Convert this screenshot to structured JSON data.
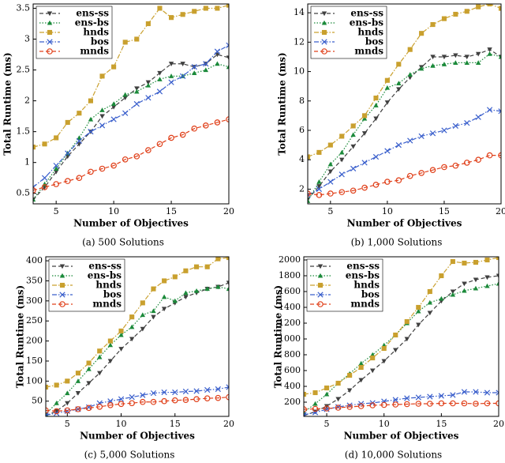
{
  "chart_data": [
    {
      "type": "line",
      "caption": "(a) 500 Solutions",
      "xlabel": "Number of Objectives",
      "ylabel": "Total Runtime (ms)",
      "x": [
        3,
        4,
        5,
        6,
        7,
        8,
        9,
        10,
        11,
        12,
        13,
        14,
        15,
        16,
        17,
        18,
        19,
        20
      ],
      "xlim": [
        3,
        20
      ],
      "xticks": [
        5,
        10,
        15,
        20
      ],
      "ylim": [
        0.33,
        3.57
      ],
      "yticks": [
        0.5,
        1,
        1.5,
        2,
        2.5,
        3,
        3.5
      ],
      "grid": false,
      "legend": "upper left",
      "series": [
        {
          "name": "ens-ss",
          "color": "#404040",
          "marker": "triangle-down",
          "dash": "dashed",
          "values": [
            0.4,
            0.6,
            0.85,
            1.1,
            1.3,
            1.5,
            1.75,
            1.9,
            2.05,
            2.2,
            2.3,
            2.45,
            2.6,
            2.6,
            2.55,
            2.6,
            2.75,
            2.7
          ]
        },
        {
          "name": "ens-bs",
          "color": "#1b8a3a",
          "marker": "triangle-up",
          "dash": "dotted",
          "values": [
            0.4,
            0.65,
            0.9,
            1.15,
            1.4,
            1.7,
            1.85,
            1.95,
            2.1,
            2.15,
            2.25,
            2.35,
            2.4,
            2.4,
            2.45,
            2.5,
            2.6,
            2.55
          ]
        },
        {
          "name": "hnds",
          "color": "#c9a02e",
          "marker": "square",
          "dash": "dashdot",
          "values": [
            1.25,
            1.3,
            1.4,
            1.65,
            1.8,
            2.0,
            2.4,
            2.55,
            2.95,
            3.0,
            3.25,
            3.5,
            3.35,
            3.4,
            3.45,
            3.5,
            3.5,
            3.55
          ]
        },
        {
          "name": "bos",
          "color": "#3a5fcc",
          "marker": "x",
          "dash": "dashdot",
          "values": [
            0.6,
            0.75,
            0.95,
            1.15,
            1.35,
            1.5,
            1.6,
            1.7,
            1.8,
            1.95,
            2.05,
            2.15,
            2.3,
            2.4,
            2.55,
            2.6,
            2.8,
            2.9
          ]
        },
        {
          "name": "mnds",
          "color": "#e0401a",
          "marker": "circle",
          "dash": "dashed",
          "values": [
            0.55,
            0.6,
            0.65,
            0.7,
            0.75,
            0.85,
            0.9,
            0.95,
            1.05,
            1.1,
            1.2,
            1.3,
            1.4,
            1.45,
            1.55,
            1.6,
            1.65,
            1.7
          ]
        }
      ]
    },
    {
      "type": "line",
      "caption": "(b) 1,000 Solutions",
      "xlabel": "Number of Objectives",
      "ylabel": "Total Runtime (ms)",
      "x": [
        3,
        4,
        5,
        6,
        7,
        8,
        9,
        10,
        11,
        12,
        13,
        14,
        15,
        16,
        17,
        18,
        19,
        20
      ],
      "xlim": [
        3,
        20
      ],
      "xticks": [
        5,
        10,
        15,
        20
      ],
      "ylim": [
        1,
        14.6
      ],
      "yticks": [
        2,
        4,
        6,
        8,
        10,
        12,
        14
      ],
      "grid": false,
      "legend": "upper left",
      "series": [
        {
          "name": "ens-ss",
          "color": "#404040",
          "marker": "triangle-down",
          "dash": "dashed",
          "values": [
            1.3,
            2.2,
            3.2,
            4.0,
            4.9,
            5.8,
            6.8,
            7.9,
            8.8,
            9.6,
            10.3,
            11.0,
            11.0,
            11.1,
            11.0,
            11.2,
            11.5,
            11.0
          ]
        },
        {
          "name": "ens-bs",
          "color": "#1b8a3a",
          "marker": "triangle-up",
          "dash": "dotted",
          "values": [
            1.2,
            2.5,
            3.7,
            4.5,
            5.7,
            6.8,
            7.7,
            8.9,
            9.2,
            9.8,
            10.2,
            10.4,
            10.5,
            10.6,
            10.6,
            10.6,
            11.2,
            11.0
          ]
        },
        {
          "name": "hnds",
          "color": "#c9a02e",
          "marker": "square",
          "dash": "dashdot",
          "values": [
            4.2,
            4.5,
            5.0,
            5.6,
            6.3,
            7.0,
            8.2,
            9.4,
            10.5,
            11.5,
            12.6,
            13.2,
            13.6,
            13.9,
            14.1,
            14.4,
            14.6,
            14.3
          ]
        },
        {
          "name": "bos",
          "color": "#3a5fcc",
          "marker": "x",
          "dash": "dashdot",
          "values": [
            1.6,
            2.0,
            2.5,
            3.0,
            3.4,
            3.8,
            4.2,
            4.6,
            5.0,
            5.3,
            5.6,
            5.8,
            6.0,
            6.3,
            6.5,
            6.9,
            7.4,
            7.3
          ]
        },
        {
          "name": "mnds",
          "color": "#e0401a",
          "marker": "circle",
          "dash": "dashed",
          "values": [
            1.7,
            1.6,
            1.7,
            1.8,
            1.9,
            2.1,
            2.3,
            2.5,
            2.6,
            2.9,
            3.1,
            3.3,
            3.5,
            3.6,
            3.8,
            4.0,
            4.3,
            4.3
          ]
        }
      ]
    },
    {
      "type": "line",
      "caption": "(c) 5,000 Solutions",
      "xlabel": "Number of Objectives",
      "ylabel": "Total Runtime (ms)",
      "x": [
        3,
        4,
        5,
        6,
        7,
        8,
        9,
        10,
        11,
        12,
        13,
        14,
        15,
        16,
        17,
        18,
        19,
        20
      ],
      "xlim": [
        3,
        20
      ],
      "xticks": [
        5,
        10,
        15,
        20
      ],
      "ylim": [
        12,
        410
      ],
      "yticks": [
        50,
        100,
        150,
        200,
        250,
        300,
        350,
        400
      ],
      "grid": false,
      "legend": "upper left",
      "series": [
        {
          "name": "ens-ss",
          "color": "#404040",
          "marker": "triangle-down",
          "dash": "dashed",
          "values": [
            14,
            25,
            45,
            70,
            95,
            120,
            150,
            180,
            205,
            230,
            260,
            280,
            295,
            310,
            320,
            330,
            335,
            345
          ]
        },
        {
          "name": "ens-bs",
          "color": "#1b8a3a",
          "marker": "triangle-up",
          "dash": "dotted",
          "values": [
            18,
            45,
            70,
            100,
            130,
            160,
            190,
            215,
            235,
            265,
            275,
            310,
            300,
            320,
            325,
            330,
            335,
            330
          ]
        },
        {
          "name": "hnds",
          "color": "#c9a02e",
          "marker": "square",
          "dash": "dashdot",
          "values": [
            85,
            90,
            100,
            120,
            145,
            175,
            200,
            225,
            260,
            295,
            330,
            350,
            360,
            375,
            385,
            385,
            405,
            408
          ]
        },
        {
          "name": "bos",
          "color": "#3a5fcc",
          "marker": "x",
          "dash": "dashdot",
          "values": [
            15,
            20,
            25,
            30,
            35,
            45,
            50,
            55,
            60,
            65,
            70,
            72,
            72,
            74,
            75,
            78,
            80,
            85
          ]
        },
        {
          "name": "mnds",
          "color": "#e0401a",
          "marker": "circle",
          "dash": "dashed",
          "values": [
            27,
            25,
            27,
            30,
            33,
            36,
            40,
            43,
            45,
            48,
            48,
            50,
            52,
            53,
            55,
            57,
            58,
            60
          ]
        }
      ]
    },
    {
      "type": "line",
      "caption": "(d) 10,000 Solutions",
      "xlabel": "Number of Objectives",
      "ylabel": "Total Runtime (ms)",
      "x": [
        3,
        4,
        5,
        6,
        7,
        8,
        9,
        10,
        11,
        12,
        13,
        14,
        15,
        16,
        17,
        18,
        19,
        20
      ],
      "xlim": [
        3,
        20
      ],
      "xticks": [
        5,
        10,
        15,
        20
      ],
      "ylim": [
        20,
        2040
      ],
      "yticks": [
        200,
        400,
        600,
        800,
        1000,
        1200,
        1400,
        1600,
        1800,
        2000
      ],
      "grid": false,
      "legend": "upper left",
      "series": [
        {
          "name": "ens-ss",
          "color": "#404040",
          "marker": "triangle-down",
          "dash": "dashed",
          "values": [
            30,
            80,
            150,
            240,
            350,
            480,
            600,
            720,
            860,
            1000,
            1180,
            1330,
            1480,
            1600,
            1700,
            1750,
            1780,
            1800
          ]
        },
        {
          "name": "ens-bs",
          "color": "#1b8a3a",
          "marker": "triangle-up",
          "dash": "dotted",
          "values": [
            70,
            180,
            300,
            440,
            560,
            690,
            800,
            920,
            1050,
            1200,
            1350,
            1460,
            1510,
            1560,
            1610,
            1640,
            1670,
            1700
          ]
        },
        {
          "name": "hnds",
          "color": "#c9a02e",
          "marker": "square",
          "dash": "dashdot",
          "values": [
            300,
            320,
            380,
            440,
            540,
            640,
            760,
            880,
            1050,
            1220,
            1400,
            1600,
            1800,
            1980,
            1960,
            1970,
            2000,
            2030
          ]
        },
        {
          "name": "bos",
          "color": "#3a5fcc",
          "marker": "x",
          "dash": "dashdot",
          "values": [
            40,
            70,
            110,
            140,
            160,
            180,
            190,
            210,
            230,
            250,
            260,
            270,
            280,
            290,
            330,
            330,
            320,
            320
          ]
        },
        {
          "name": "mnds",
          "color": "#e0401a",
          "marker": "circle",
          "dash": "dashed",
          "values": [
            110,
            115,
            120,
            130,
            140,
            150,
            160,
            165,
            170,
            175,
            180,
            180,
            185,
            185,
            185,
            180,
            185,
            185
          ]
        }
      ]
    }
  ]
}
